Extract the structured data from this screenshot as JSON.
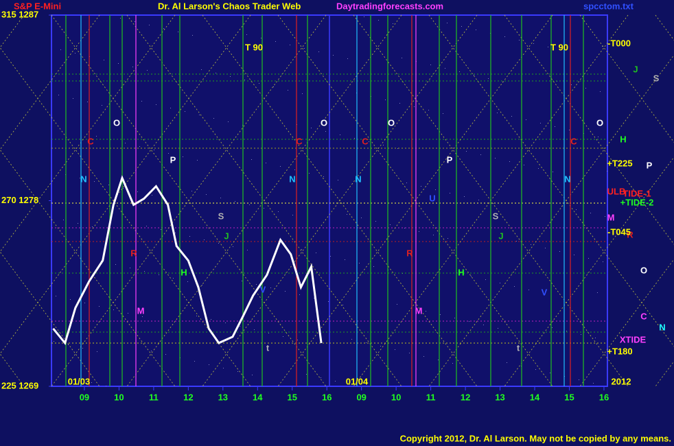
{
  "chart_data": {
    "type": "line",
    "title": "Dr. Al Larson's Chaos Trader Web",
    "symbol": "S&P E-Mini",
    "site": "Daytradingforecasts.com",
    "file": "spcctom.txt",
    "copyright": "Copyright 2012, Dr. Al Larson. May not be copied by any means.",
    "x": [
      -0.9,
      -0.56,
      -0.26,
      0.14,
      0.53,
      0.84,
      1.09,
      1.42,
      1.72,
      2.07,
      2.41,
      2.66,
      3.0,
      3.29,
      3.59,
      3.88,
      4.28,
      4.58,
      4.87,
      5.27,
      5.66,
      5.96,
      6.25,
      6.55,
      6.84
    ],
    "values": [
      1271.8,
      1271.1,
      1272.8,
      1274.1,
      1275.1,
      1277.8,
      1279.1,
      1277.8,
      1278.1,
      1278.7,
      1277.8,
      1275.8,
      1275.1,
      1273.8,
      1271.8,
      1271.1,
      1271.4,
      1272.4,
      1273.4,
      1274.4,
      1276.1,
      1275.4,
      1273.8,
      1274.8,
      1271.1
    ],
    "color": "#ffffff",
    "xlim": [
      -0.95,
      15.1
    ],
    "xticks": [
      {
        "value": 0,
        "label": "09"
      },
      {
        "value": 1,
        "label": "10"
      },
      {
        "value": 2,
        "label": "11"
      },
      {
        "value": 3,
        "label": "12"
      },
      {
        "value": 4,
        "label": "13"
      },
      {
        "value": 5,
        "label": "14"
      },
      {
        "value": 6,
        "label": "15"
      },
      {
        "value": 7,
        "label": "16"
      },
      {
        "value": 8,
        "label": "09"
      },
      {
        "value": 9,
        "label": "10"
      },
      {
        "value": 10,
        "label": "11"
      },
      {
        "value": 11,
        "label": "12"
      },
      {
        "value": 12,
        "label": "13"
      },
      {
        "value": 13,
        "label": "14"
      },
      {
        "value": 14,
        "label": "15"
      },
      {
        "value": 15,
        "label": "16"
      }
    ],
    "ylim": [
      1269,
      1287
    ],
    "yticks": [
      {
        "value": 1287,
        "label": "315 1287"
      },
      {
        "value": 1278,
        "label": "270 1278"
      },
      {
        "value": 1269,
        "label": "225 1269"
      }
    ],
    "annotations": [
      {
        "text": "T 90",
        "color": "#ffff00"
      },
      {
        "text": "T 90",
        "color": "#ffff00"
      },
      {
        "text": "O",
        "color": "#ffffff"
      },
      {
        "text": "O",
        "color": "#ffffff"
      },
      {
        "text": "O",
        "color": "#ffffff"
      },
      {
        "text": "O",
        "color": "#ffffff"
      },
      {
        "text": "O",
        "color": "#ffffff"
      },
      {
        "text": "C",
        "color": "#e02020"
      },
      {
        "text": "C",
        "color": "#e02020"
      },
      {
        "text": "C",
        "color": "#e02020"
      },
      {
        "text": "C",
        "color": "#e02020"
      },
      {
        "text": "C",
        "color": "#ff40ff"
      },
      {
        "text": "N",
        "color": "#20c0ff"
      },
      {
        "text": "N",
        "color": "#20c0ff"
      },
      {
        "text": "N",
        "color": "#20c0ff"
      },
      {
        "text": "N",
        "color": "#20c0ff"
      },
      {
        "text": "N",
        "color": "#20ffff"
      },
      {
        "text": "P",
        "color": "#ffffff"
      },
      {
        "text": "P",
        "color": "#ffffff"
      },
      {
        "text": "P",
        "color": "#ffffff"
      },
      {
        "text": "S",
        "color": "#b0b0b0"
      },
      {
        "text": "S",
        "color": "#b0b0b0"
      },
      {
        "text": "S",
        "color": "#b0b0b0"
      },
      {
        "text": "J",
        "color": "#20c020"
      },
      {
        "text": "J",
        "color": "#20c020"
      },
      {
        "text": "J",
        "color": "#20c020"
      },
      {
        "text": "H",
        "color": "#20ff20"
      },
      {
        "text": "H",
        "color": "#20ff20"
      },
      {
        "text": "H",
        "color": "#20ff20"
      },
      {
        "text": "R",
        "color": "#e02020"
      },
      {
        "text": "R",
        "color": "#e02020"
      },
      {
        "text": "R",
        "color": "#e02020"
      },
      {
        "text": "M",
        "color": "#ff40ff"
      },
      {
        "text": "M",
        "color": "#ff40ff"
      },
      {
        "text": "U",
        "color": "#3050ff"
      },
      {
        "text": "V",
        "color": "#3050ff"
      },
      {
        "text": "V",
        "color": "#3050ff"
      },
      {
        "text": "t",
        "color": "#b0b0b0"
      },
      {
        "text": "t",
        "color": "#b0b0b0"
      },
      {
        "text": "-T000",
        "color": "#ffff00"
      },
      {
        "text": "+T225",
        "color": "#ffff00"
      },
      {
        "text": "ULB",
        "color": "#ff2020"
      },
      {
        "text": "TIDE-1",
        "color": "#ff2020"
      },
      {
        "text": "+TIDE-2",
        "color": "#20ff20"
      },
      {
        "text": "M",
        "color": "#ff40ff"
      },
      {
        "text": "-T045",
        "color": "#ffff00"
      },
      {
        "text": "XTIDE",
        "color": "#ff40ff"
      },
      {
        "text": "+T180",
        "color": "#ffff00"
      },
      {
        "text": "01/03",
        "color": "#ffff00"
      },
      {
        "text": "01/04",
        "color": "#ffff00"
      },
      {
        "text": "2012",
        "color": "#ffff00"
      }
    ]
  }
}
